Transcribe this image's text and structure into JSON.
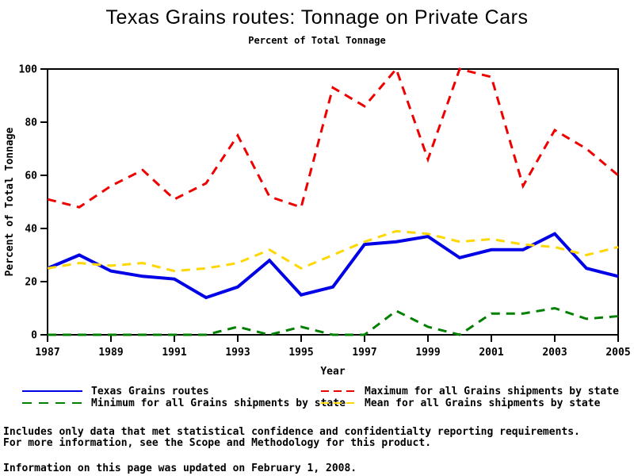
{
  "title": "Texas Grains routes: Tonnage on Private Cars",
  "subtitle": "Percent of Total Tonnage",
  "chart_data": {
    "type": "line",
    "x": [
      1987,
      1988,
      1989,
      1990,
      1991,
      1992,
      1993,
      1994,
      1995,
      1996,
      1997,
      1998,
      1999,
      2000,
      2001,
      2002,
      2003,
      2004,
      2005
    ],
    "xlabel": "Year",
    "ylabel": "Percent of Total Tonnage",
    "xlim": [
      1987,
      2005
    ],
    "ylim": [
      0,
      100
    ],
    "xticks": [
      1987,
      1989,
      1991,
      1993,
      1995,
      1997,
      1999,
      2001,
      2003,
      2005
    ],
    "yticks": [
      0,
      20,
      40,
      60,
      80,
      100
    ],
    "grid": false,
    "legend_position": "bottom",
    "series": [
      {
        "name": "Texas Grains routes",
        "color": "#0000E6",
        "dash": "solid",
        "width": 4,
        "values": [
          25,
          30,
          24,
          22,
          21,
          14,
          18,
          28,
          15,
          18,
          34,
          35,
          37,
          29,
          32,
          32,
          38,
          25,
          22
        ]
      },
      {
        "name": "Maximum for all Grains shipments by state",
        "color": "#EE0000",
        "dash": "dashed",
        "width": 3,
        "values": [
          51,
          48,
          56,
          62,
          51,
          57,
          75,
          52,
          48,
          93,
          86,
          100,
          66,
          100,
          97,
          56,
          77,
          70,
          60
        ]
      },
      {
        "name": "Minimum for all Grains shipments by state",
        "color": "#008000",
        "dash": "dashed",
        "width": 3,
        "values": [
          0,
          0,
          0,
          0,
          0,
          0,
          3,
          0,
          3,
          0,
          0,
          9,
          3,
          0,
          8,
          8,
          10,
          6,
          7
        ]
      },
      {
        "name": "Mean for all Grains shipments by state",
        "color": "#FFD700",
        "dash": "dashed",
        "width": 3,
        "values": [
          25,
          27,
          26,
          27,
          24,
          25,
          27,
          32,
          25,
          30,
          35,
          39,
          38,
          35,
          36,
          34,
          33,
          30,
          33
        ]
      }
    ]
  },
  "legend": {
    "items": [
      {
        "label": "Texas Grains routes",
        "color": "#0000E6",
        "dash": "solid"
      },
      {
        "label": "Maximum for all Grains shipments by state",
        "color": "#EE0000",
        "dash": "dashed"
      },
      {
        "label": "Minimum for all Grains shipments by state",
        "color": "#008000",
        "dash": "dashed"
      },
      {
        "label": "Mean for all Grains shipments by state",
        "color": "#FFD700",
        "dash": "dashed"
      }
    ]
  },
  "footer": {
    "line1": "Includes only data that met statistical confidence and confidentialty reporting requirements.",
    "line2": "For more information, see the Scope and Methodology for this product.",
    "updated": "Information on this page was updated on February 1, 2008."
  }
}
